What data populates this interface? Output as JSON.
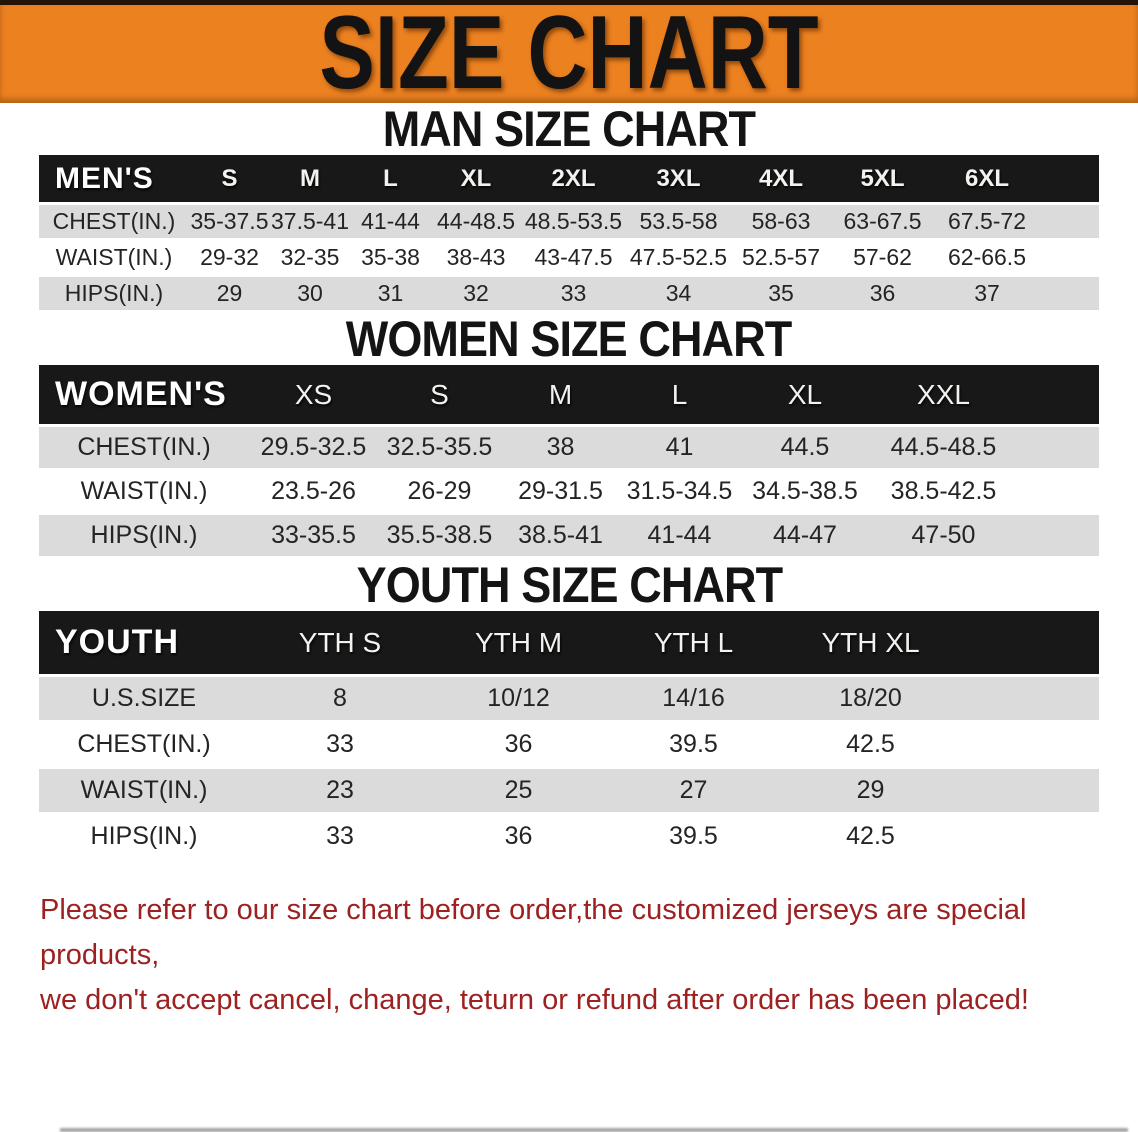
{
  "banner": {
    "title": "SIZE CHART",
    "bg_color": "#ec8120",
    "text_color": "#131313"
  },
  "sections": [
    {
      "key": "men",
      "title": "MAN SIZE CHART",
      "header_label": "MEN'S",
      "sizes": [
        "S",
        "M",
        "L",
        "XL",
        "2XL",
        "3XL",
        "4XL",
        "5XL",
        "6XL"
      ],
      "rows": [
        {
          "label": "CHEST(IN.)",
          "values": [
            "35-37.5",
            "37.5-41",
            "41-44",
            "44-48.5",
            "48.5-53.5",
            "53.5-58",
            "58-63",
            "63-67.5",
            "67.5-72"
          ]
        },
        {
          "label": "WAIST(IN.)",
          "values": [
            "29-32",
            "32-35",
            "35-38",
            "38-43",
            "43-47.5",
            "47.5-52.5",
            "52.5-57",
            "57-62",
            "62-66.5"
          ]
        },
        {
          "label": "HIPS(IN.)",
          "values": [
            "29",
            "30",
            "31",
            "32",
            "33",
            "34",
            "35",
            "36",
            "37"
          ]
        }
      ]
    },
    {
      "key": "women",
      "title": "WOMEN SIZE CHART",
      "header_label": "WOMEN'S",
      "sizes": [
        "XS",
        "S",
        "M",
        "L",
        "XL",
        "XXL"
      ],
      "rows": [
        {
          "label": "CHEST(IN.)",
          "values": [
            "29.5-32.5",
            "32.5-35.5",
            "38",
            "41",
            "44.5",
            "44.5-48.5"
          ]
        },
        {
          "label": "WAIST(IN.)",
          "values": [
            "23.5-26",
            "26-29",
            "29-31.5",
            "31.5-34.5",
            "34.5-38.5",
            "38.5-42.5"
          ]
        },
        {
          "label": "HIPS(IN.)",
          "values": [
            "33-35.5",
            "35.5-38.5",
            "38.5-41",
            "41-44",
            "44-47",
            "47-50"
          ]
        }
      ]
    },
    {
      "key": "youth",
      "title": "YOUTH SIZE CHART",
      "header_label": "YOUTH",
      "sizes": [
        "YTH S",
        "YTH M",
        "YTH L",
        "YTH XL"
      ],
      "rows": [
        {
          "label": "U.S.SIZE",
          "values": [
            "8",
            "10/12",
            "14/16",
            "18/20"
          ]
        },
        {
          "label": "CHEST(IN.)",
          "values": [
            "33",
            "36",
            "39.5",
            "42.5"
          ]
        },
        {
          "label": "WAIST(IN.)",
          "values": [
            "23",
            "25",
            "27",
            "29"
          ]
        },
        {
          "label": "HIPS(IN.)",
          "values": [
            "33",
            "36",
            "39.5",
            "42.5"
          ]
        }
      ]
    }
  ],
  "footer": {
    "color": "#9e2121",
    "lines": [
      "Please refer to our size chart before order,the customized jerseys are special products,",
      "we don't accept cancel, change, teturn or refund after order has been placed!"
    ]
  }
}
